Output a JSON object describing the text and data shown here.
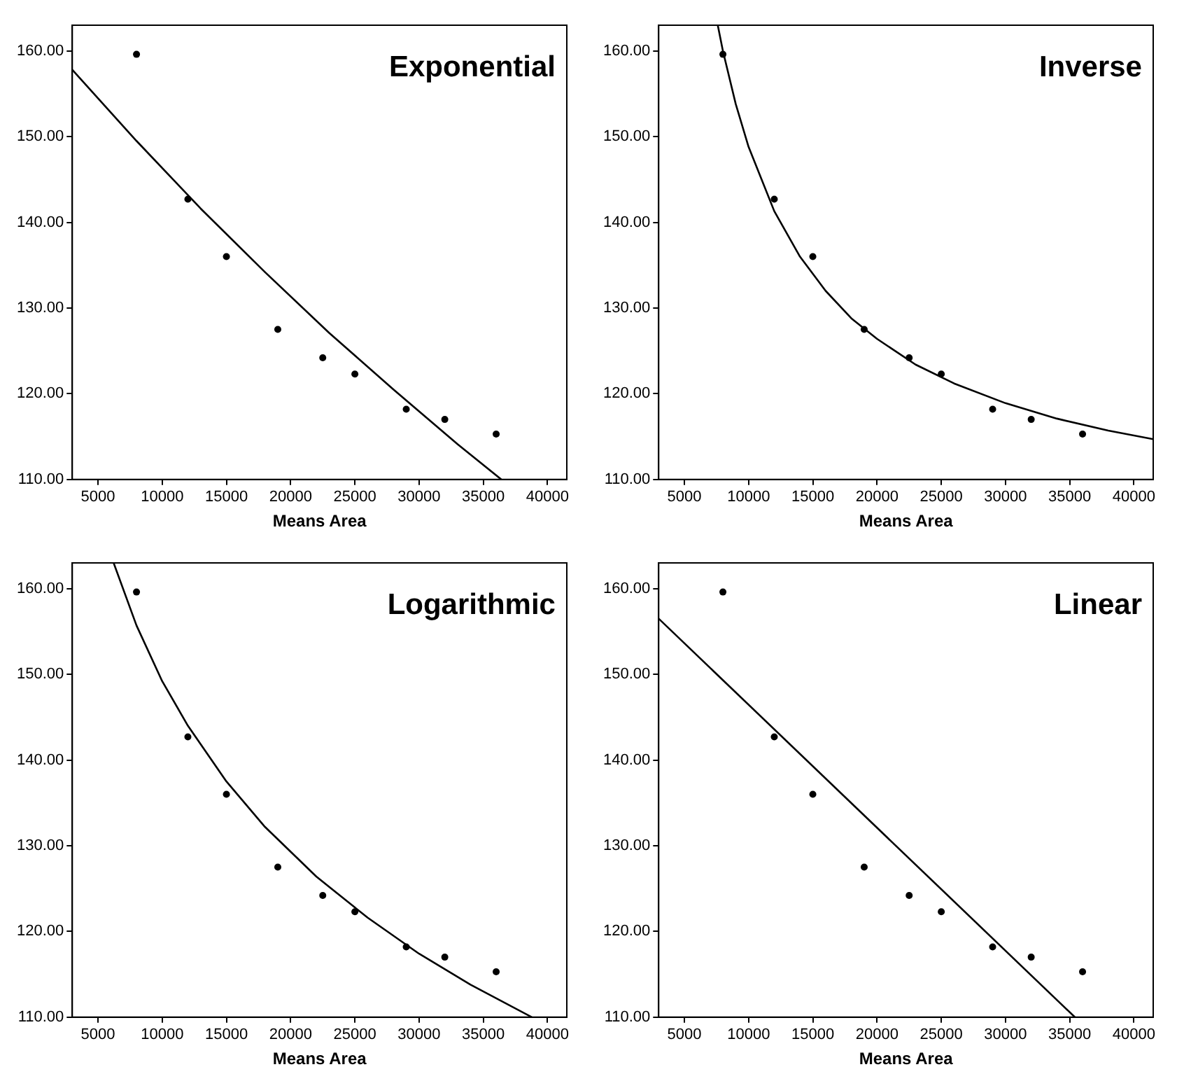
{
  "chart_data": [
    {
      "type": "scatter",
      "title": "Exponential",
      "xlabel": "Means Area",
      "xlim": [
        3000,
        41500
      ],
      "ylim": [
        110,
        163
      ],
      "xticks": [
        5000,
        10000,
        15000,
        20000,
        25000,
        30000,
        35000,
        40000
      ],
      "yticks": [
        {
          "value": 110,
          "label": "110.00"
        },
        {
          "value": 120,
          "label": "120.00"
        },
        {
          "value": 130,
          "label": "130.00"
        },
        {
          "value": 140,
          "label": "140.00"
        },
        {
          "value": 150,
          "label": "150.00"
        },
        {
          "value": 160,
          "label": "160.00"
        }
      ],
      "grid": false,
      "legend": false,
      "marker": "circle",
      "series": [
        {
          "color": "#000000",
          "x": [
            8000,
            12000,
            15000,
            19000,
            22500,
            25000,
            29000,
            32000,
            36000
          ],
          "values": [
            159.6,
            142.7,
            136.0,
            127.5,
            124.2,
            122.3,
            118.2,
            117.0,
            115.3
          ]
        },
        {
          "type": "line",
          "color": "#000000",
          "marker": "none",
          "line_style": "solid",
          "x": [
            3000,
            8000,
            13000,
            18000,
            23000,
            28000,
            33000,
            36400
          ],
          "values": [
            157.8,
            149.5,
            141.6,
            134.2,
            127.1,
            120.5,
            114.1,
            110.0
          ]
        }
      ]
    },
    {
      "type": "scatter",
      "title": "Inverse",
      "xlabel": "Means Area",
      "xlim": [
        3000,
        41500
      ],
      "ylim": [
        110,
        163
      ],
      "xticks": [
        5000,
        10000,
        15000,
        20000,
        25000,
        30000,
        35000,
        40000
      ],
      "yticks": [
        {
          "value": 110,
          "label": "110.00"
        },
        {
          "value": 120,
          "label": "120.00"
        },
        {
          "value": 130,
          "label": "130.00"
        },
        {
          "value": 140,
          "label": "140.00"
        },
        {
          "value": 150,
          "label": "150.00"
        },
        {
          "value": 160,
          "label": "160.00"
        }
      ],
      "grid": false,
      "legend": false,
      "marker": "circle",
      "series": [
        {
          "color": "#000000",
          "x": [
            8000,
            12000,
            15000,
            19000,
            22500,
            25000,
            29000,
            32000,
            36000
          ],
          "values": [
            159.6,
            142.7,
            136.0,
            127.5,
            124.2,
            122.3,
            118.2,
            117.0,
            115.3
          ]
        },
        {
          "type": "line",
          "color": "#000000",
          "marker": "none",
          "line_style": "solid",
          "x": [
            7600,
            8000,
            9000,
            10000,
            12000,
            14000,
            16000,
            18000,
            20000,
            23000,
            26000,
            30000,
            34000,
            38000,
            41500
          ],
          "values": [
            163.0,
            160.0,
            153.8,
            148.8,
            141.3,
            136.0,
            132.0,
            128.8,
            126.4,
            123.4,
            121.2,
            118.9,
            117.1,
            115.7,
            114.7
          ]
        }
      ]
    },
    {
      "type": "scatter",
      "title": "Logarithmic",
      "xlabel": "Means Area",
      "xlim": [
        3000,
        41500
      ],
      "ylim": [
        110,
        163
      ],
      "xticks": [
        5000,
        10000,
        15000,
        20000,
        25000,
        30000,
        35000,
        40000
      ],
      "yticks": [
        {
          "value": 110,
          "label": "110.00"
        },
        {
          "value": 120,
          "label": "120.00"
        },
        {
          "value": 130,
          "label": "130.00"
        },
        {
          "value": 140,
          "label": "140.00"
        },
        {
          "value": 150,
          "label": "150.00"
        },
        {
          "value": 160,
          "label": "160.00"
        }
      ],
      "grid": false,
      "legend": false,
      "marker": "circle",
      "series": [
        {
          "color": "#000000",
          "x": [
            8000,
            12000,
            15000,
            19000,
            22500,
            25000,
            29000,
            32000,
            36000
          ],
          "values": [
            159.6,
            142.7,
            136.0,
            127.5,
            124.2,
            122.3,
            118.2,
            117.0,
            115.3
          ]
        },
        {
          "type": "line",
          "color": "#000000",
          "marker": "none",
          "line_style": "solid",
          "x": [
            6220,
            8000,
            10000,
            12000,
            15000,
            18000,
            22000,
            26000,
            30000,
            34000,
            38780
          ],
          "values": [
            163.0,
            155.7,
            149.2,
            144.0,
            137.5,
            132.2,
            126.4,
            121.6,
            117.4,
            113.8,
            110.0
          ]
        }
      ]
    },
    {
      "type": "scatter",
      "title": "Linear",
      "xlabel": "Means Area",
      "xlim": [
        3000,
        41500
      ],
      "ylim": [
        110,
        163
      ],
      "xticks": [
        5000,
        10000,
        15000,
        20000,
        25000,
        30000,
        35000,
        40000
      ],
      "yticks": [
        {
          "value": 110,
          "label": "110.00"
        },
        {
          "value": 120,
          "label": "120.00"
        },
        {
          "value": 130,
          "label": "130.00"
        },
        {
          "value": 140,
          "label": "140.00"
        },
        {
          "value": 150,
          "label": "150.00"
        },
        {
          "value": 160,
          "label": "160.00"
        }
      ],
      "grid": false,
      "legend": false,
      "marker": "circle",
      "series": [
        {
          "color": "#000000",
          "x": [
            8000,
            12000,
            15000,
            19000,
            22500,
            25000,
            29000,
            32000,
            36000
          ],
          "values": [
            159.6,
            142.7,
            136.0,
            127.5,
            124.2,
            122.3,
            118.2,
            117.0,
            115.3
          ]
        },
        {
          "type": "line",
          "color": "#000000",
          "marker": "none",
          "line_style": "solid",
          "x": [
            3000,
            35400
          ],
          "values": [
            156.5,
            110.0
          ]
        }
      ]
    }
  ]
}
